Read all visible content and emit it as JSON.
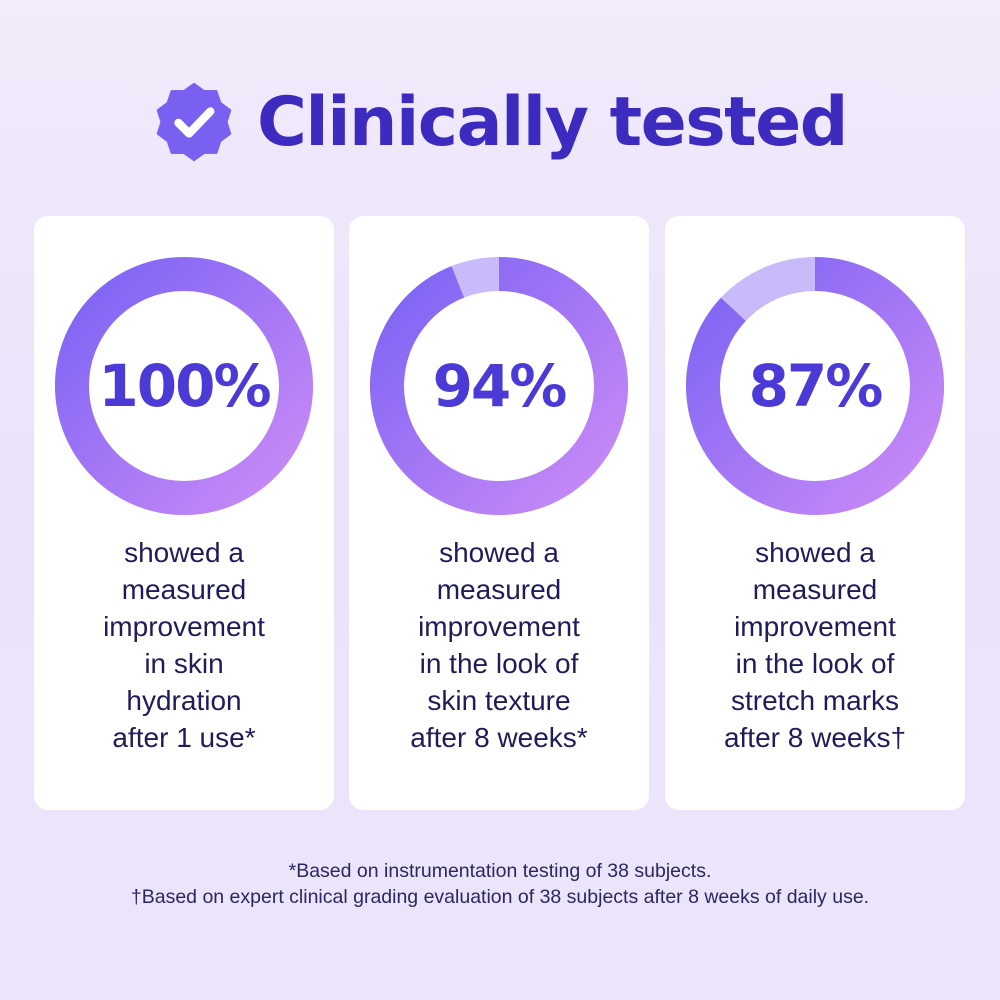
{
  "header": {
    "title": "Clinically tested",
    "badge_icon": "check-badge-icon"
  },
  "colors": {
    "title": "#3d2bc0",
    "ring_start": "#7b63f4",
    "ring_end": "#c98af6",
    "ring_track": "#c9bbfa",
    "percent_text": "#4b3ad6",
    "body_text": "#1f1c5a"
  },
  "stats": [
    {
      "percent_label": "100%",
      "percent": 100,
      "description_lines": [
        "showed a",
        "measured",
        "improvement",
        "in skin",
        "hydration",
        "after 1 use*"
      ]
    },
    {
      "percent_label": "94%",
      "percent": 94,
      "description_lines": [
        "showed a",
        "measured",
        "improvement",
        "in the look of",
        "skin texture",
        "after 8 weeks*"
      ]
    },
    {
      "percent_label": "87%",
      "percent": 87,
      "description_lines": [
        "showed a",
        "measured",
        "improvement",
        "in the look of",
        "stretch marks",
        "after 8 weeks†"
      ]
    }
  ],
  "footnotes": [
    "*Based on instrumentation testing of 38 subjects.",
    "†Based on expert clinical grading evaluation of 38 subjects after 8 weeks of daily use."
  ]
}
